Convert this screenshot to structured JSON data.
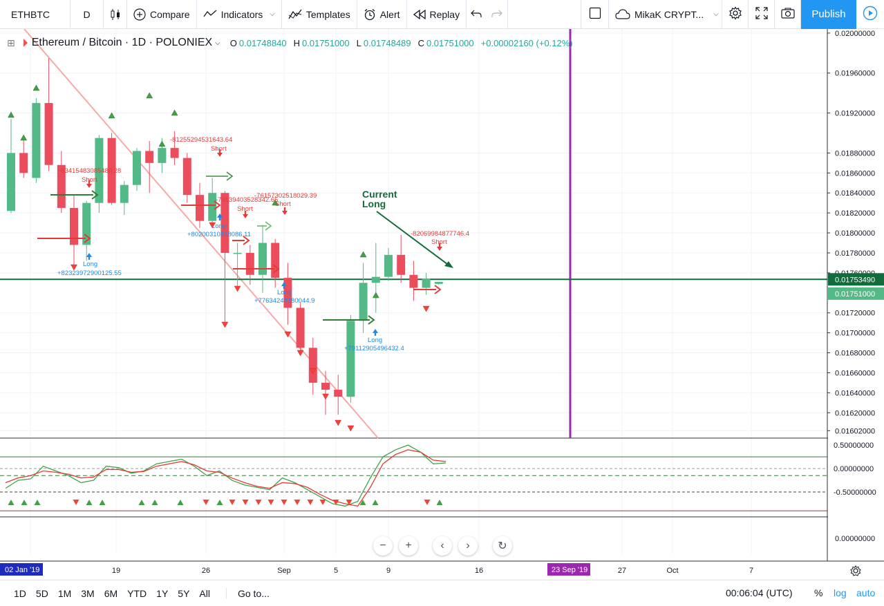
{
  "toolbar": {
    "symbol": "ETHBTC",
    "interval": "D",
    "compare": "Compare",
    "indicators": "Indicators",
    "templates": "Templates",
    "alert": "Alert",
    "replay": "Replay",
    "layout_name": "MikaK CRYPT...",
    "publish": "Publish"
  },
  "legend": {
    "title": "Ethereum / Bitcoin · 1D · POLONIEX",
    "o_label": "O",
    "o_value": "0.01748840",
    "h_label": "H",
    "h_value": "0.01751000",
    "l_label": "L",
    "l_value": "0.01748489",
    "c_label": "C",
    "c_value": "0.01751000",
    "change": "+0.00002160 (+0.12%)"
  },
  "colors": {
    "up": "#26a69a",
    "up_fill": "#53b987",
    "down": "#ef5350",
    "down_fill": "#eb4d5c",
    "trendline": "#f7a9a7",
    "hline": "#116b3a",
    "vline": "#9c27b0",
    "accent": "#2196f3"
  },
  "price_axis": {
    "ticks": [
      "0.02000000",
      "0.01960000",
      "0.01920000",
      "0.01880000",
      "0.01860000",
      "0.01840000",
      "0.01820000",
      "0.01800000",
      "0.01780000",
      "0.01760000",
      "0.01720000",
      "0.01700000",
      "0.01680000",
      "0.01660000",
      "0.01640000",
      "0.01620000",
      "0.01602000"
    ],
    "hline_label": "0.01753490",
    "last_label": "0.01751000"
  },
  "osc_axis": {
    "ticks": [
      "0.50000000",
      "0.00000000",
      "-0.50000000"
    ],
    "lower_tick": "0.00000000"
  },
  "time_axis": {
    "start_label": "02 Jan '19",
    "ticks": [
      "19",
      "26",
      "Sep",
      "5",
      "9",
      "16",
      "27",
      "Oct",
      "7"
    ],
    "cursor_label": "23 Sep '19"
  },
  "annotations": {
    "current": "Current",
    "long_word": "Long",
    "short_word": "Short",
    "values": [
      "-83415483085480.28",
      "+82323972900125.55",
      "-81255294531643.64",
      "+80200310818086.11",
      "-79139403528342.65",
      "-76157302518029.39",
      "+77634248180044.9",
      "+79112905496432.4",
      "-82069984877746.4"
    ]
  },
  "chart_data": {
    "type": "candlestick",
    "ohlc_series_note": "",
    "candles": [
      {
        "o": 0.01822,
        "h": 0.01914,
        "l": 0.0182,
        "c": 0.0188
      },
      {
        "o": 0.0188,
        "h": 0.01895,
        "l": 0.01855,
        "c": 0.0186
      },
      {
        "o": 0.01855,
        "h": 0.01935,
        "l": 0.0185,
        "c": 0.0193
      },
      {
        "o": 0.0193,
        "h": 0.01975,
        "l": 0.01862,
        "c": 0.01868
      },
      {
        "o": 0.01868,
        "h": 0.01882,
        "l": 0.0182,
        "c": 0.01825
      },
      {
        "o": 0.01825,
        "h": 0.01838,
        "l": 0.01768,
        "c": 0.01788
      },
      {
        "o": 0.01788,
        "h": 0.01832,
        "l": 0.01772,
        "c": 0.0183
      },
      {
        "o": 0.0183,
        "h": 0.01898,
        "l": 0.0182,
        "c": 0.01895
      },
      {
        "o": 0.01895,
        "h": 0.019,
        "l": 0.01828,
        "c": 0.0183
      },
      {
        "o": 0.0183,
        "h": 0.01852,
        "l": 0.01818,
        "c": 0.01848
      },
      {
        "o": 0.01848,
        "h": 0.01885,
        "l": 0.01842,
        "c": 0.01882
      },
      {
        "o": 0.01882,
        "h": 0.01892,
        "l": 0.0184,
        "c": 0.0187
      },
      {
        "o": 0.0187,
        "h": 0.01895,
        "l": 0.0186,
        "c": 0.01885
      },
      {
        "o": 0.01885,
        "h": 0.01902,
        "l": 0.01868,
        "c": 0.01875
      },
      {
        "o": 0.01875,
        "h": 0.0188,
        "l": 0.0183,
        "c": 0.01838
      },
      {
        "o": 0.01838,
        "h": 0.0185,
        "l": 0.01805,
        "c": 0.01812
      },
      {
        "o": 0.01812,
        "h": 0.01855,
        "l": 0.01808,
        "c": 0.0184
      },
      {
        "o": 0.0184,
        "h": 0.01842,
        "l": 0.01708,
        "c": 0.0178
      },
      {
        "o": 0.0178,
        "h": 0.0179,
        "l": 0.01742,
        "c": 0.0178
      },
      {
        "o": 0.0178,
        "h": 0.01788,
        "l": 0.01748,
        "c": 0.01758
      },
      {
        "o": 0.01758,
        "h": 0.01808,
        "l": 0.0174,
        "c": 0.0179
      },
      {
        "o": 0.0179,
        "h": 0.01794,
        "l": 0.01745,
        "c": 0.01755
      },
      {
        "o": 0.01755,
        "h": 0.0177,
        "l": 0.01708,
        "c": 0.01725
      },
      {
        "o": 0.01725,
        "h": 0.0173,
        "l": 0.0168,
        "c": 0.01685
      },
      {
        "o": 0.01685,
        "h": 0.01695,
        "l": 0.01638,
        "c": 0.0165
      },
      {
        "o": 0.0165,
        "h": 0.01662,
        "l": 0.01618,
        "c": 0.01643
      },
      {
        "o": 0.01643,
        "h": 0.01658,
        "l": 0.01618,
        "c": 0.01636
      },
      {
        "o": 0.01636,
        "h": 0.01718,
        "l": 0.0163,
        "c": 0.01712
      },
      {
        "o": 0.01712,
        "h": 0.0177,
        "l": 0.017,
        "c": 0.0175
      },
      {
        "o": 0.0175,
        "h": 0.0179,
        "l": 0.0172,
        "c": 0.01756
      },
      {
        "o": 0.01756,
        "h": 0.01785,
        "l": 0.01752,
        "c": 0.01778
      },
      {
        "o": 0.01778,
        "h": 0.01798,
        "l": 0.0175,
        "c": 0.01758
      },
      {
        "o": 0.01758,
        "h": 0.01772,
        "l": 0.01732,
        "c": 0.01745
      },
      {
        "o": 0.01745,
        "h": 0.0176,
        "l": 0.01738,
        "c": 0.01754
      },
      {
        "o": 0.01749,
        "h": 0.01751,
        "l": 0.01748,
        "c": 0.01751
      }
    ],
    "horizontal_line": 0.0175349,
    "ylim": [
      0.01596,
      0.02002
    ],
    "oscillator": {
      "levels": [
        0.25,
        0.0,
        -0.15,
        -0.5,
        -0.9
      ],
      "ylim": [
        -1.0,
        0.62
      ],
      "green": [
        -0.42,
        -0.25,
        -0.22,
        0.05,
        -0.05,
        -0.15,
        -0.3,
        -0.25,
        0.05,
        0.02,
        -0.1,
        -0.05,
        0.1,
        0.15,
        0.2,
        0.05,
        -0.15,
        -0.05,
        -0.25,
        -0.35,
        -0.4,
        -0.45,
        -0.2,
        -0.3,
        -0.45,
        -0.6,
        -0.75,
        -0.8,
        -0.7,
        -0.2,
        0.25,
        0.4,
        0.5,
        0.35,
        0.1,
        0.12
      ],
      "red": [
        -0.3,
        -0.2,
        -0.15,
        -0.05,
        -0.08,
        -0.12,
        -0.2,
        -0.18,
        -0.02,
        -0.02,
        -0.08,
        -0.06,
        0.05,
        0.1,
        0.15,
        0.08,
        -0.05,
        -0.08,
        -0.2,
        -0.3,
        -0.38,
        -0.42,
        -0.3,
        -0.32,
        -0.4,
        -0.55,
        -0.68,
        -0.75,
        -0.8,
        -0.4,
        0.1,
        0.3,
        0.4,
        0.35,
        0.18,
        0.15
      ]
    }
  },
  "bottombar": {
    "ranges": [
      "1D",
      "5D",
      "1M",
      "3M",
      "6M",
      "YTD",
      "1Y",
      "5Y",
      "All"
    ],
    "goto": "Go to...",
    "time": "00:06:04 (UTC)",
    "pct": "%",
    "log": "log",
    "auto": "auto"
  }
}
